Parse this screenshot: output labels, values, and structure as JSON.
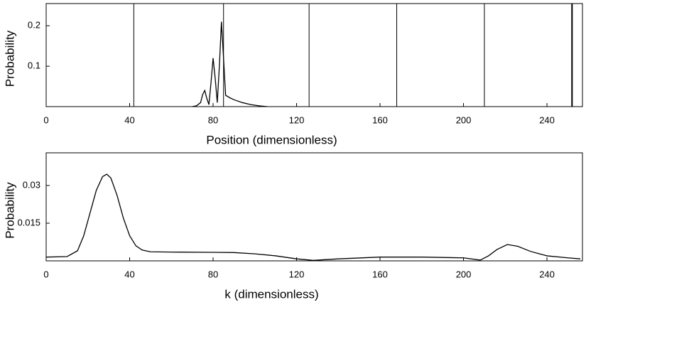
{
  "chart_data": [
    {
      "type": "line",
      "xlabel": "Position (dimensionless)",
      "ylabel": "Probability",
      "xlim": [
        0,
        257
      ],
      "ylim": [
        0,
        0.255
      ],
      "xticks": [
        0,
        40,
        80,
        120,
        160,
        200,
        240
      ],
      "yticks": [
        0.1,
        0.2
      ],
      "vlines": [
        42,
        85,
        126,
        168,
        210,
        252
      ],
      "x": [
        70,
        72,
        74,
        75,
        76,
        77,
        78,
        79,
        80,
        81,
        82,
        83,
        84,
        85,
        86,
        88,
        90,
        94,
        98,
        102,
        106
      ],
      "series": [
        {
          "color": "#000000",
          "values": [
            0,
            0.002,
            0.01,
            0.03,
            0.04,
            0.02,
            0.005,
            0.06,
            0.12,
            0.07,
            0.01,
            0.1,
            0.21,
            0.12,
            0.028,
            0.022,
            0.017,
            0.01,
            0.005,
            0.002,
            0
          ]
        }
      ]
    },
    {
      "type": "line",
      "xlabel": "k (dimensionless)",
      "ylabel": "Probability",
      "xlim": [
        0,
        257
      ],
      "ylim": [
        0,
        0.043
      ],
      "xticks": [
        0,
        40,
        80,
        120,
        160,
        200,
        240
      ],
      "yticks": [
        0.015,
        0.03
      ],
      "x": [
        0,
        10,
        15,
        18,
        21,
        24,
        27,
        29,
        31,
        34,
        37,
        40,
        43,
        46,
        50,
        60,
        80,
        90,
        100,
        110,
        120,
        128,
        140,
        160,
        180,
        200,
        208,
        212,
        216,
        221,
        226,
        232,
        240,
        250,
        256
      ],
      "series": [
        {
          "color": "#000000",
          "values": [
            0.0015,
            0.0017,
            0.004,
            0.01,
            0.019,
            0.028,
            0.0335,
            0.0345,
            0.033,
            0.026,
            0.017,
            0.01,
            0.006,
            0.0043,
            0.0036,
            0.0035,
            0.0034,
            0.0033,
            0.0028,
            0.002,
            0.0008,
            0.0002,
            0.0008,
            0.0015,
            0.0015,
            0.0012,
            0.0003,
            0.002,
            0.0045,
            0.0065,
            0.0058,
            0.0038,
            0.002,
            0.0012,
            0.0008
          ]
        }
      ]
    }
  ]
}
